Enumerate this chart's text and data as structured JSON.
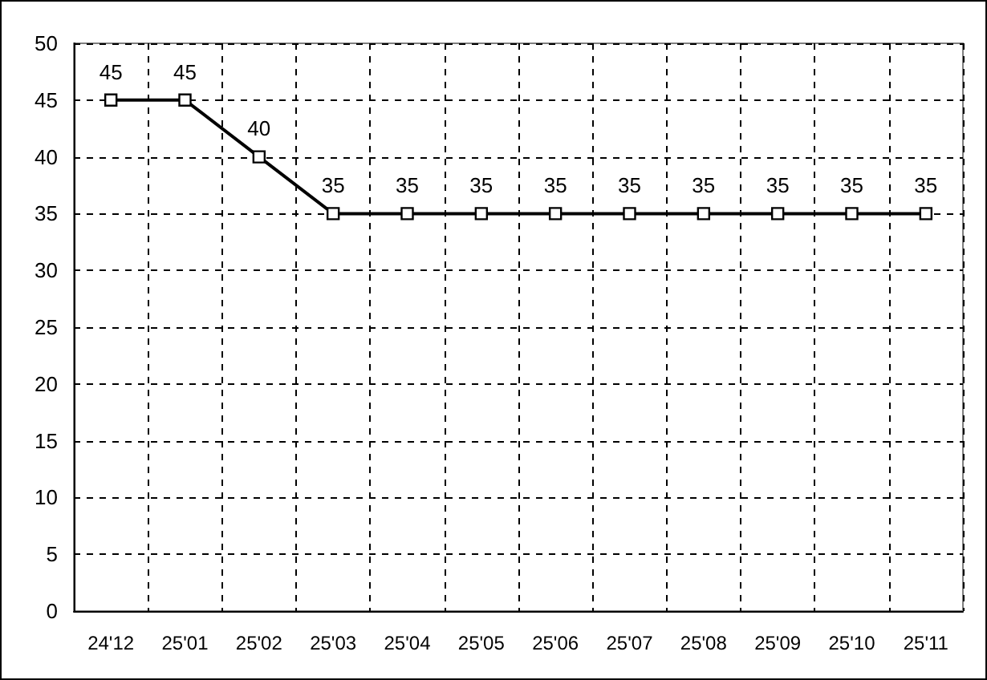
{
  "chart_data": {
    "type": "line",
    "categories": [
      "24'12",
      "25'01",
      "25'02",
      "25'03",
      "25'04",
      "25'05",
      "25'06",
      "25'07",
      "25'08",
      "25'09",
      "25'10",
      "25'11"
    ],
    "series": [
      {
        "color": "#000000",
        "values": [
          45,
          45,
          40,
          35,
          35,
          35,
          35,
          35,
          35,
          35,
          35,
          35
        ]
      }
    ],
    "ylim": [
      0,
      50
    ],
    "yticks": [
      0,
      5,
      10,
      15,
      20,
      25,
      30,
      35,
      40,
      45,
      50
    ],
    "grid": true,
    "marker": "square",
    "line_style": "solid",
    "data_labels": true
  }
}
